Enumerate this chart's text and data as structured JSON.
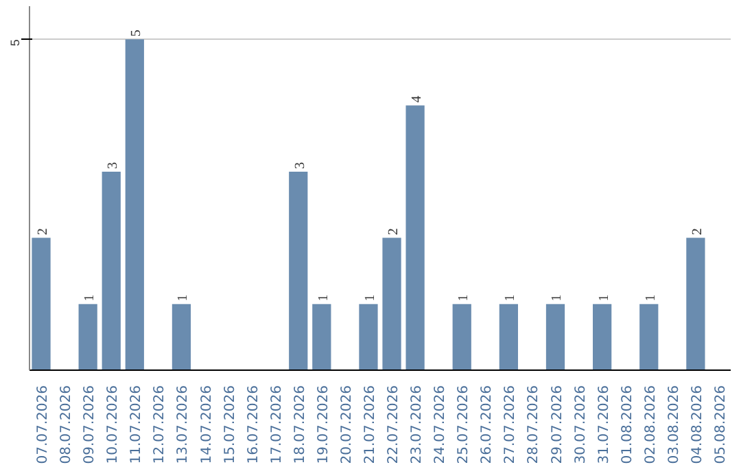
{
  "chart_data": {
    "type": "bar",
    "categories": [
      "07.07.2026",
      "08.07.2026",
      "09.07.2026",
      "10.07.2026",
      "11.07.2026",
      "12.07.2026",
      "13.07.2026",
      "14.07.2026",
      "15.07.2026",
      "16.07.2026",
      "17.07.2026",
      "18.07.2026",
      "19.07.2026",
      "20.07.2026",
      "21.07.2026",
      "22.07.2026",
      "23.07.2026",
      "24.07.2026",
      "25.07.2026",
      "26.07.2026",
      "27.07.2026",
      "28.07.2026",
      "29.07.2026",
      "30.07.2026",
      "31.07.2026",
      "01.08.2026",
      "02.08.2026",
      "03.08.2026",
      "04.08.2026",
      "05.08.2026"
    ],
    "values": [
      2,
      0,
      1,
      3,
      5,
      0,
      1,
      0,
      0,
      0,
      0,
      3,
      1,
      0,
      1,
      2,
      4,
      0,
      1,
      0,
      1,
      0,
      1,
      0,
      1,
      0,
      1,
      0,
      2,
      0
    ],
    "value_labels": [
      "2",
      null,
      "1",
      "3",
      "5",
      null,
      "1",
      null,
      null,
      null,
      null,
      "3",
      "1",
      null,
      "1",
      "2",
      "4",
      null,
      "1",
      null,
      "1",
      null,
      "1",
      null,
      "1",
      null,
      "1",
      null,
      "2",
      null
    ],
    "color": "#6a8caf",
    "ylim": [
      0,
      5.5
    ],
    "yticks": [
      5
    ],
    "grid": "y"
  }
}
